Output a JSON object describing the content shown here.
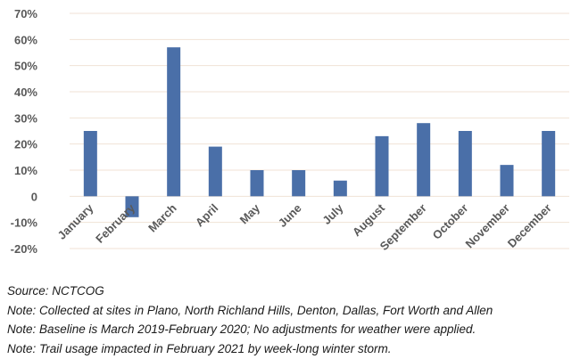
{
  "chart_data": {
    "type": "bar",
    "categories": [
      "January",
      "February",
      "March",
      "April",
      "May",
      "June",
      "July",
      "August",
      "September",
      "October",
      "November",
      "December"
    ],
    "values": [
      25,
      -8,
      57,
      19,
      10,
      10,
      6,
      23,
      28,
      25,
      12,
      25
    ],
    "ylim": [
      -20,
      70
    ],
    "yticks": [
      70,
      60,
      50,
      40,
      30,
      20,
      10,
      0,
      -10,
      -20
    ],
    "ytick_labels": [
      "70%",
      "60%",
      "50%",
      "40%",
      "30%",
      "20%",
      "10%",
      "0",
      "-10%",
      "-20%"
    ],
    "grid": true,
    "bar_color": "#4a6fa8",
    "grid_color": "#f0e2d6"
  },
  "notes": {
    "source": "Source: NCTCOG",
    "note1": "Note: Collected at sites in Plano, North Richland Hills, Denton, Dallas, Fort Worth and Allen",
    "note2": "Note: Baseline is March 2019-February 2020; No adjustments for weather were applied.",
    "note3": "Note: Trail usage impacted in February 2021 by week-long winter storm."
  }
}
